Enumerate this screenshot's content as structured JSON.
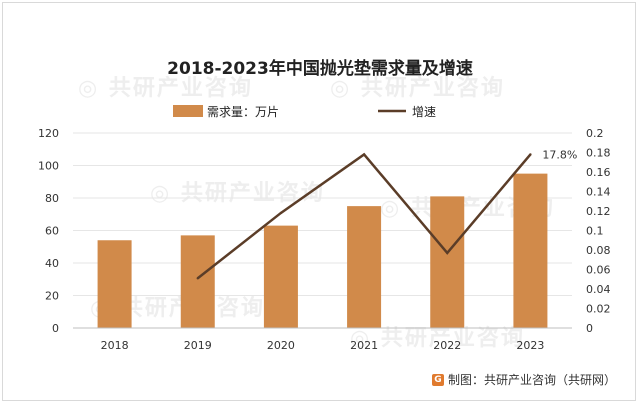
{
  "footer": {
    "source": "制图：共研产业咨询（共研网）",
    "logo_icon": "gongyan-logo-icon"
  },
  "chart_data": {
    "type": "bar+line",
    "title": "2018-2023年中国抛光垫需求量及增速",
    "categories": [
      "2018",
      "2019",
      "2020",
      "2021",
      "2022",
      "2023"
    ],
    "series": [
      {
        "name": "需求量：万片",
        "type": "bar",
        "axis": "left",
        "color": "#d18a4a",
        "values": [
          54,
          57,
          63,
          75,
          81,
          95
        ]
      },
      {
        "name": "增速",
        "type": "line",
        "axis": "right",
        "color": "#5b3d28",
        "values": [
          null,
          0.051,
          0.118,
          0.178,
          0.077,
          0.178
        ]
      }
    ],
    "data_labels": [
      {
        "series": 1,
        "index": 5,
        "text": "17.8%"
      }
    ],
    "y_left": {
      "min": 0,
      "max": 120,
      "ticks": [
        "0",
        "20",
        "40",
        "60",
        "80",
        "100",
        "120"
      ]
    },
    "y_right": {
      "min": 0,
      "max": 0.2,
      "ticks": [
        "0",
        "0.02",
        "0.04",
        "0.06",
        "0.08",
        "0.1",
        "0.12",
        "0.14",
        "0.16",
        "0.18",
        "0.2"
      ]
    },
    "legend_position": "top",
    "grid": true
  }
}
